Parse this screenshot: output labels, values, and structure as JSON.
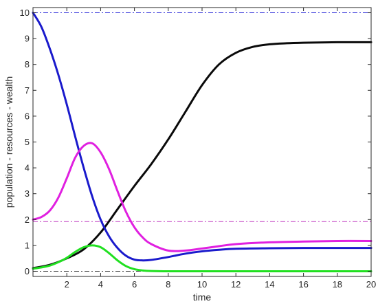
{
  "chart_data": {
    "type": "line",
    "xlabel": "time",
    "ylabel": "population - resources - wealth",
    "xlim": [
      0,
      20
    ],
    "ylim": [
      -0.2,
      10.2
    ],
    "xticks": [
      2,
      4,
      6,
      8,
      10,
      12,
      14,
      16,
      18,
      20
    ],
    "yticks": [
      0,
      1,
      2,
      3,
      4,
      5,
      6,
      7,
      8,
      9,
      10
    ],
    "grid": false,
    "legend": "none",
    "series": [
      {
        "color": "#0a0a0a",
        "style": "solid",
        "x": [
          0,
          1,
          2,
          3,
          4,
          5,
          6,
          7,
          8,
          9,
          10,
          11,
          12,
          13,
          14,
          15,
          16,
          17,
          18,
          19,
          20
        ],
        "y": [
          0.12,
          0.25,
          0.5,
          0.85,
          1.5,
          2.4,
          3.3,
          4.15,
          5.1,
          6.15,
          7.2,
          8.0,
          8.45,
          8.68,
          8.78,
          8.82,
          8.84,
          8.85,
          8.86,
          8.86,
          8.86
        ]
      },
      {
        "color": "#1a1acc",
        "style": "solid",
        "x": [
          0,
          0.5,
          1,
          1.5,
          2,
          2.5,
          3,
          3.5,
          4,
          4.5,
          5,
          5.5,
          6,
          6.5,
          7,
          8,
          9,
          10,
          11,
          12,
          14,
          16,
          18,
          20
        ],
        "y": [
          10.0,
          9.45,
          8.6,
          7.6,
          6.45,
          5.2,
          4.0,
          2.9,
          2.0,
          1.35,
          0.9,
          0.6,
          0.45,
          0.42,
          0.44,
          0.55,
          0.68,
          0.77,
          0.83,
          0.87,
          0.89,
          0.9,
          0.9,
          0.9
        ]
      },
      {
        "color": "#e020e0",
        "style": "solid",
        "x": [
          0,
          0.5,
          1,
          1.5,
          2,
          2.5,
          3,
          3.5,
          4,
          4.5,
          5,
          5.5,
          6,
          6.5,
          7,
          8,
          9,
          10,
          11,
          12,
          14,
          16,
          18,
          20
        ],
        "y": [
          2.0,
          2.1,
          2.35,
          2.85,
          3.6,
          4.4,
          4.85,
          4.95,
          4.6,
          3.95,
          3.1,
          2.3,
          1.7,
          1.3,
          1.05,
          0.8,
          0.8,
          0.88,
          0.97,
          1.05,
          1.12,
          1.15,
          1.17,
          1.17
        ]
      },
      {
        "color": "#20e020",
        "style": "solid",
        "x": [
          0,
          0.5,
          1,
          1.5,
          2,
          2.5,
          3,
          3.5,
          4,
          4.5,
          5,
          5.5,
          6,
          6.5,
          7,
          8,
          10,
          12,
          14,
          16,
          18,
          20
        ],
        "y": [
          0.1,
          0.15,
          0.22,
          0.35,
          0.52,
          0.75,
          0.93,
          1.0,
          0.93,
          0.7,
          0.42,
          0.2,
          0.08,
          0.03,
          0.01,
          0.0,
          0.0,
          0.0,
          0.0,
          0.0,
          0.0,
          0.0
        ]
      }
    ],
    "reference_lines": [
      {
        "y": 10.0,
        "color": "#3a3adc",
        "style": "dashdot"
      },
      {
        "y": 1.92,
        "color": "#c03ac0",
        "style": "dashdot"
      },
      {
        "y": 0.0,
        "color": "#404040",
        "style": "dashdot"
      }
    ]
  }
}
